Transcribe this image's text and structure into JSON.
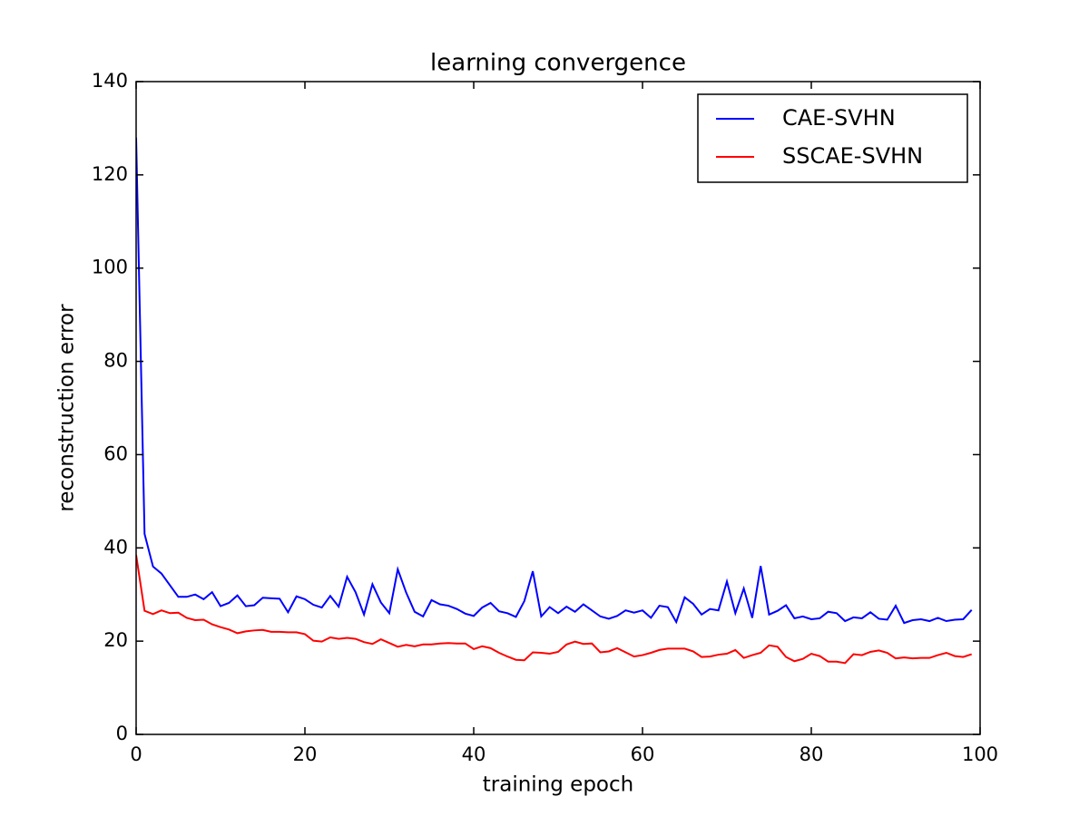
{
  "chart_data": {
    "type": "line",
    "title": "learning convergence",
    "x_label": "training epoch",
    "y_label": "reconstruction error",
    "x": [
      0,
      1,
      2,
      3,
      4,
      5,
      6,
      7,
      8,
      9,
      10,
      11,
      12,
      13,
      14,
      15,
      16,
      17,
      18,
      19,
      20,
      21,
      22,
      23,
      24,
      25,
      26,
      27,
      28,
      29,
      30,
      31,
      32,
      33,
      34,
      35,
      36,
      37,
      38,
      39,
      40,
      41,
      42,
      43,
      44,
      45,
      46,
      47,
      48,
      49,
      50,
      51,
      52,
      53,
      54,
      55,
      56,
      57,
      58,
      59,
      60,
      61,
      62,
      63,
      64,
      65,
      66,
      67,
      68,
      69,
      70,
      71,
      72,
      73,
      74,
      75,
      76,
      77,
      78,
      79,
      80,
      81,
      82,
      83,
      84,
      85,
      86,
      87,
      88,
      89,
      90,
      91,
      92,
      93,
      94,
      95,
      96,
      97,
      98,
      99
    ],
    "series": [
      {
        "name": "CAE-SVHN",
        "color": "#0000ff",
        "values": [
          128,
          43,
          36,
          34.5,
          32,
          29.5,
          29.5,
          30,
          29,
          30.5,
          27.5,
          28.2,
          29.8,
          27.5,
          27.7,
          29.3,
          29.2,
          29.1,
          26.2,
          29.6,
          29,
          27.8,
          27.2,
          29.7,
          27.4,
          33.8,
          30.5,
          25.7,
          32.2,
          28.3,
          26,
          35.4,
          30.4,
          26.3,
          25.3,
          28.8,
          27.9,
          27.6,
          26.9,
          25.9,
          25.4,
          27.2,
          28.2,
          26.4,
          26,
          25.2,
          28.6,
          35,
          25.3,
          27.3,
          26,
          27.4,
          26.3,
          27.9,
          26.6,
          25.3,
          24.8,
          25.4,
          26.6,
          26.1,
          26.6,
          25,
          27.6,
          27.3,
          24.1,
          29.4,
          28,
          25.7,
          26.9,
          26.6,
          32.8,
          26,
          31.3,
          25,
          36.1,
          25.7,
          26.5,
          27.7,
          24.9,
          25.3,
          24.7,
          24.9,
          26.3,
          26,
          24.3,
          25.1,
          24.9,
          26.2,
          24.8,
          24.6,
          27.6,
          23.9,
          24.5,
          24.7,
          24.3,
          25,
          24.3,
          24.6,
          24.7,
          26.7
        ]
      },
      {
        "name": "SSCAE-SVHN",
        "color": "#ff0000",
        "values": [
          38.5,
          26.5,
          25.8,
          26.6,
          26,
          26.1,
          25,
          24.5,
          24.6,
          23.6,
          23,
          22.5,
          21.7,
          22.1,
          22.3,
          22.4,
          22,
          22,
          21.9,
          21.9,
          21.5,
          20.1,
          19.9,
          20.8,
          20.5,
          20.7,
          20.5,
          19.8,
          19.4,
          20.4,
          19.6,
          18.8,
          19.2,
          18.9,
          19.3,
          19.3,
          19.5,
          19.6,
          19.5,
          19.5,
          18.3,
          18.9,
          18.5,
          17.5,
          16.7,
          16,
          15.9,
          17.6,
          17.5,
          17.3,
          17.7,
          19.3,
          19.9,
          19.4,
          19.5,
          17.6,
          17.8,
          18.5,
          17.6,
          16.7,
          17,
          17.5,
          18.1,
          18.4,
          18.4,
          18.4,
          17.8,
          16.6,
          16.7,
          17.1,
          17.3,
          18.1,
          16.4,
          17,
          17.5,
          19.1,
          18.8,
          16.6,
          15.7,
          16.2,
          17.3,
          16.8,
          15.6,
          15.6,
          15.3,
          17.2,
          17,
          17.7,
          18,
          17.5,
          16.3,
          16.5,
          16.3,
          16.4,
          16.4,
          17,
          17.5,
          16.8,
          16.6,
          17.2
        ]
      }
    ],
    "xlim": [
      0,
      100
    ],
    "ylim": [
      0,
      140
    ],
    "xticks": [
      0,
      20,
      40,
      60,
      80,
      100
    ],
    "yticks": [
      0,
      20,
      40,
      60,
      80,
      100,
      120,
      140
    ],
    "legend": "upper right",
    "grid": false
  }
}
